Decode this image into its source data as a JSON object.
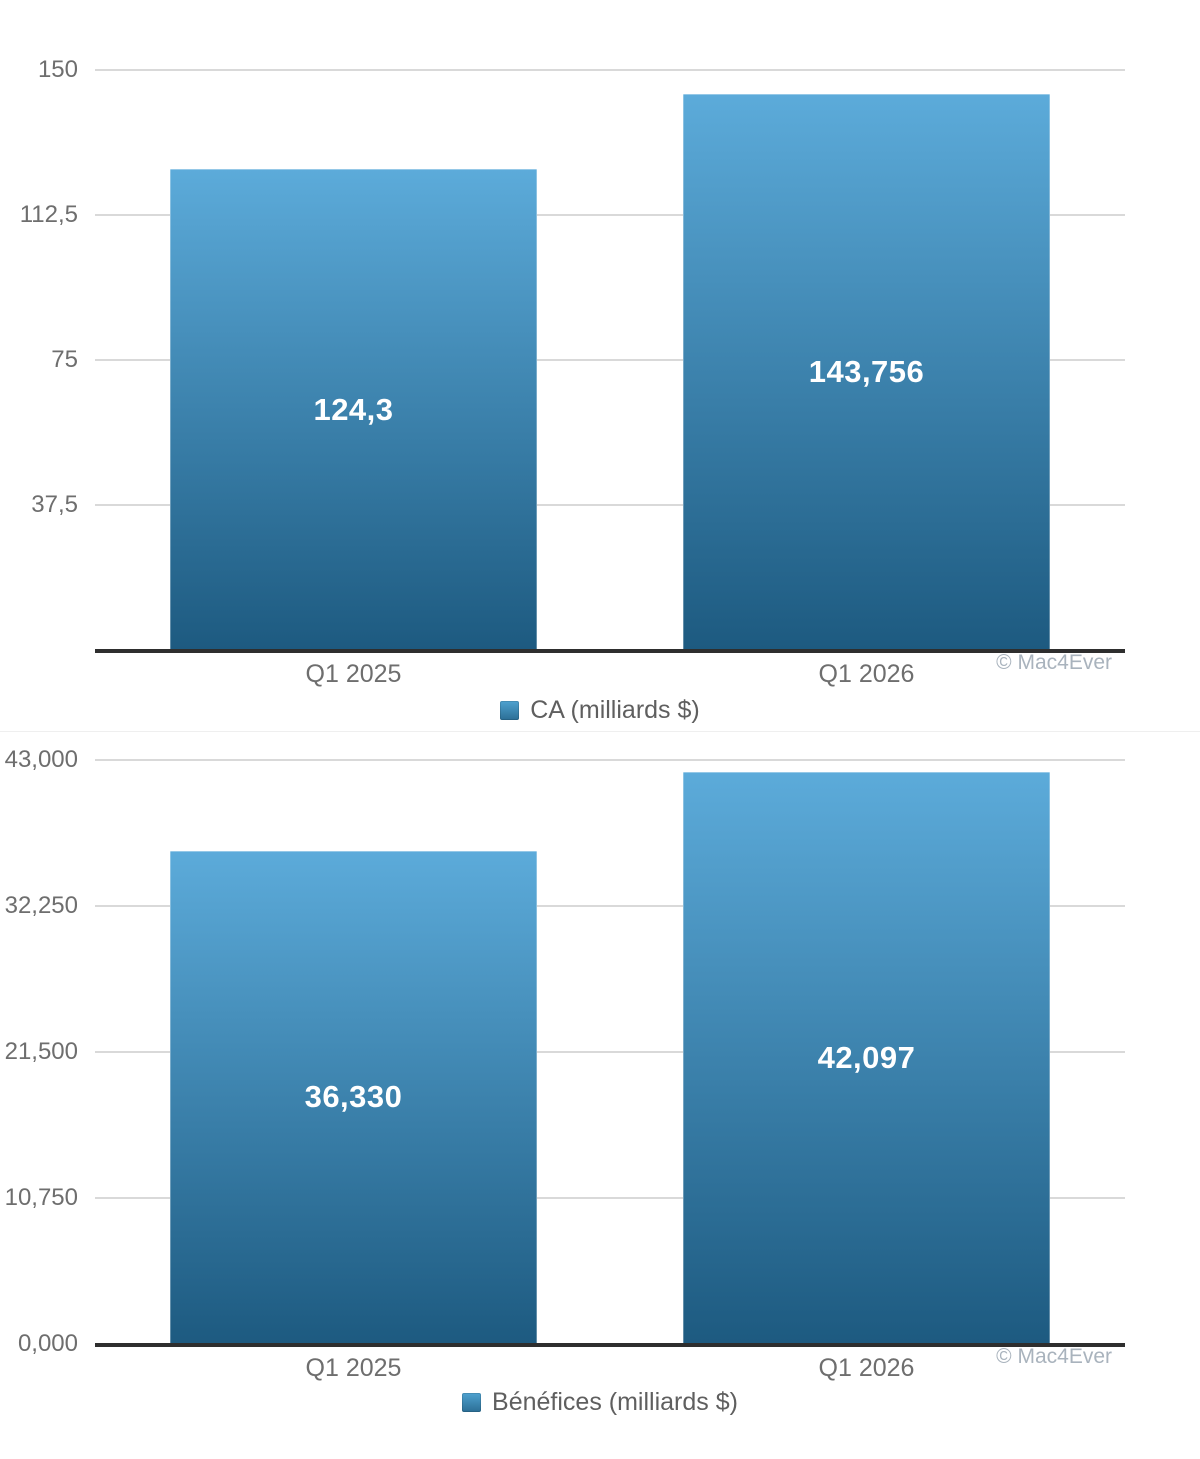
{
  "page": {
    "background": "#ffffff"
  },
  "chart_data": [
    {
      "type": "bar",
      "title": "",
      "categories": [
        "Q1 2025",
        "Q1 2026"
      ],
      "values": [
        124.3,
        143.756
      ],
      "value_labels": [
        "124,3",
        "143,756"
      ],
      "legend": [
        "CA (milliards $)"
      ],
      "legend_position": "bottom-center",
      "xlabel": "",
      "ylabel": "",
      "ylim": [
        0,
        150
      ],
      "y_ticks": [
        {
          "v": 150,
          "label": "150"
        },
        {
          "v": 112.5,
          "label": "112,5"
        },
        {
          "v": 75,
          "label": "75"
        },
        {
          "v": 37.5,
          "label": "37,5"
        }
      ],
      "grid": true,
      "watermark": "© Mac4Ever",
      "bar_gradient": [
        "#5cabda",
        "#1d5a80"
      ]
    },
    {
      "type": "bar",
      "title": "",
      "categories": [
        "Q1 2025",
        "Q1 2026"
      ],
      "values": [
        36330,
        42097
      ],
      "value_labels": [
        "36,330",
        "42,097"
      ],
      "legend": [
        "Bénéfices (milliards $)"
      ],
      "legend_position": "bottom-center",
      "xlabel": "",
      "ylabel": "",
      "ylim": [
        0,
        43000
      ],
      "y_ticks": [
        {
          "v": 43000,
          "label": "43,000"
        },
        {
          "v": 32250,
          "label": "32,250"
        },
        {
          "v": 21500,
          "label": "21,500"
        },
        {
          "v": 10750,
          "label": "10,750"
        },
        {
          "v": 0,
          "label": "0,000"
        }
      ],
      "grid": true,
      "watermark": "© Mac4Ever",
      "bar_gradient": [
        "#5cabda",
        "#1d5a80"
      ]
    }
  ],
  "colors": {
    "bar_top": "#5cabda",
    "bar_bottom": "#1d5a80",
    "gridline": "#d9d9d9",
    "axis": "#2e2e2e",
    "tick_text": "#6e6e6e",
    "legend_text": "#5f5f5f",
    "value_text": "#ffffff",
    "watermark_text": "#a9b3bd"
  }
}
